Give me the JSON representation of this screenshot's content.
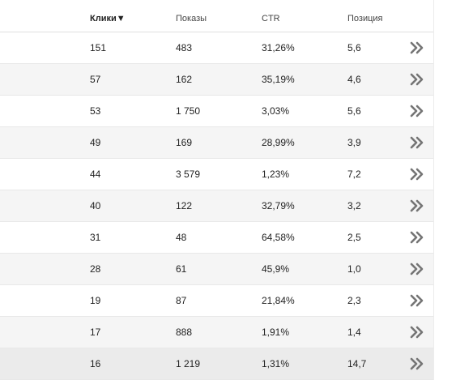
{
  "table": {
    "columns": {
      "clicks": "Клики▼",
      "impressions": "Показы",
      "ctr": "CTR",
      "position": "Позиция"
    },
    "rows": [
      {
        "clicks": "151",
        "impressions": "483",
        "ctr": "31,26%",
        "position": "5,6"
      },
      {
        "clicks": "57",
        "impressions": "162",
        "ctr": "35,19%",
        "position": "4,6"
      },
      {
        "clicks": "53",
        "impressions": "1 750",
        "ctr": "3,03%",
        "position": "5,6"
      },
      {
        "clicks": "49",
        "impressions": "169",
        "ctr": "28,99%",
        "position": "3,9"
      },
      {
        "clicks": "44",
        "impressions": "3 579",
        "ctr": "1,23%",
        "position": "7,2"
      },
      {
        "clicks": "40",
        "impressions": "122",
        "ctr": "32,79%",
        "position": "3,2"
      },
      {
        "clicks": "31",
        "impressions": "48",
        "ctr": "64,58%",
        "position": "2,5"
      },
      {
        "clicks": "28",
        "impressions": "61",
        "ctr": "45,9%",
        "position": "1,0"
      },
      {
        "clicks": "19",
        "impressions": "87",
        "ctr": "21,84%",
        "position": "2,3"
      },
      {
        "clicks": "17",
        "impressions": "888",
        "ctr": "1,91%",
        "position": "1,4"
      },
      {
        "clicks": "16",
        "impressions": "1 219",
        "ctr": "1,31%",
        "position": "14,7"
      }
    ],
    "row_action_icon": "double-chevron-right-icon"
  },
  "colors": {
    "row_alt": "#f5f5f5",
    "row_border": "#e8e8e8",
    "chevron": "#757575"
  }
}
